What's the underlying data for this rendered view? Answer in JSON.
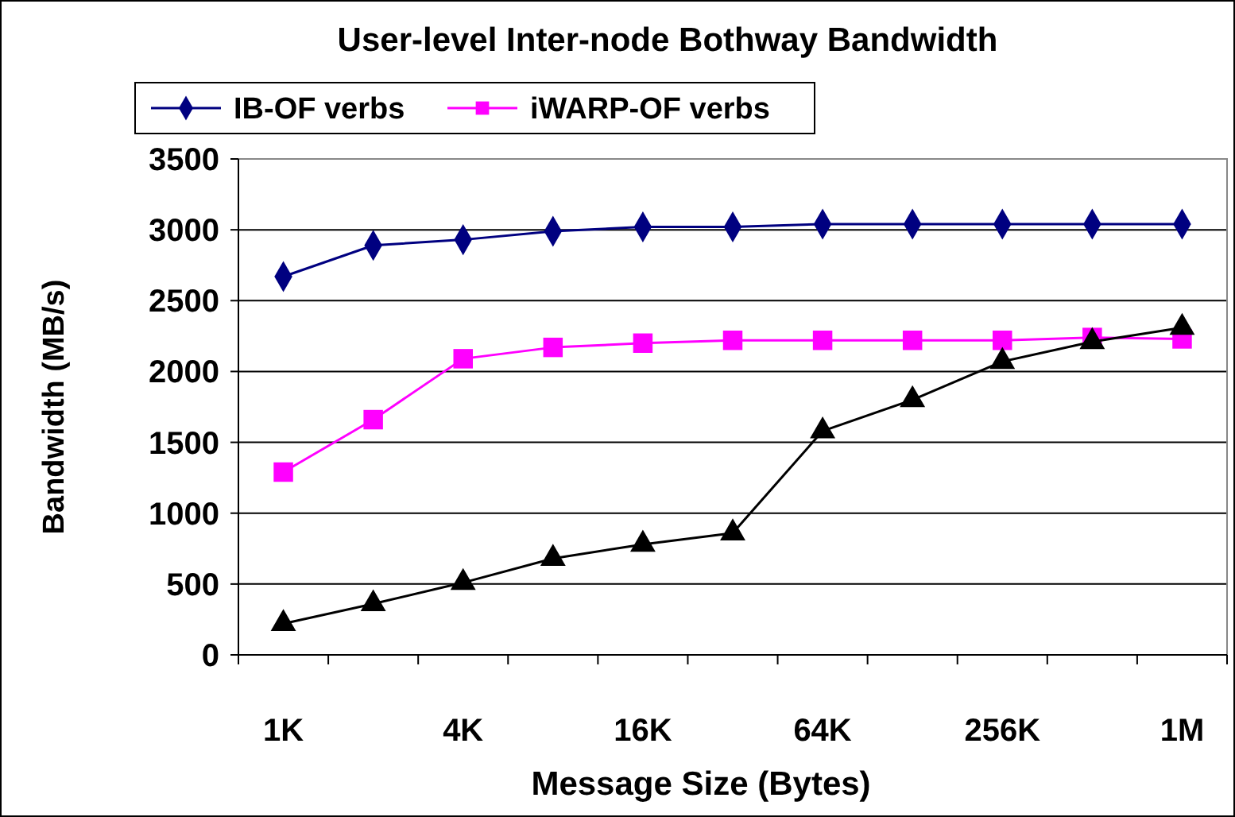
{
  "chart_data": {
    "type": "line",
    "title": "User-level Inter-node Bothway Bandwidth",
    "xlabel": "Message Size (Bytes)",
    "ylabel": "Bandwidth (MB/s)",
    "categories": [
      "1K",
      null,
      "4K",
      null,
      "16K",
      null,
      "64K",
      null,
      "256K",
      null,
      "1M"
    ],
    "series": [
      {
        "name": "IB-OF verbs",
        "color": "#000080",
        "marker": "diamond",
        "values": [
          2670,
          2890,
          2930,
          2990,
          3020,
          3020,
          3040,
          3040,
          3040,
          3040,
          3040
        ]
      },
      {
        "name": "iWARP-OF verbs",
        "color": "#ff00ff",
        "marker": "square",
        "values": [
          1290,
          1660,
          2090,
          2170,
          2200,
          2220,
          2220,
          2220,
          2220,
          2240,
          2230
        ]
      },
      {
        "color": "#000000",
        "marker": "triangle",
        "values": [
          220,
          360,
          510,
          680,
          780,
          860,
          1580,
          1800,
          2070,
          2210,
          2310
        ]
      }
    ],
    "ylim": [
      0,
      3500
    ],
    "yticks": [
      0,
      500,
      1000,
      1500,
      2000,
      2500,
      3000,
      3500
    ],
    "grid": "y",
    "legend": "top",
    "line_style": "solid"
  }
}
